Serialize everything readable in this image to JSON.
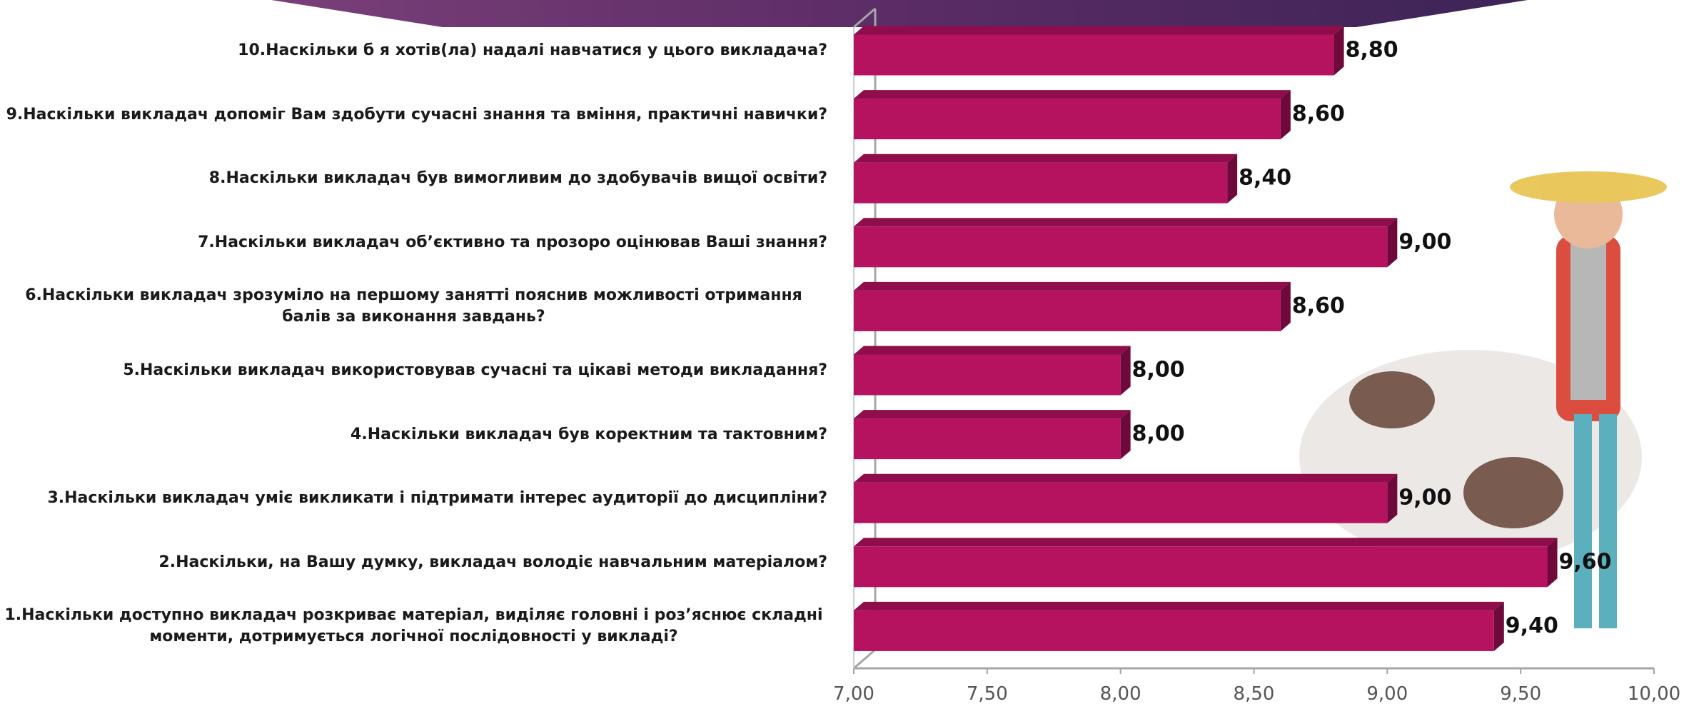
{
  "chart_data": {
    "type": "bar",
    "orientation": "horizontal",
    "categories": [
      "10.Наскільки б я хотів(ла) надалі навчатися у цього викладача?",
      "9.Наскільки викладач допоміг Вам здобути сучасні знання та вміння, практичні навички?",
      "8.Наскільки викладач був вимогливим до здобувачів вищої освіти?",
      "7.Наскільки викладач об’єктивно та прозоро оцінював Ваші знання?",
      "6.Наскільки викладач зрозуміло на першому занятті пояснив можливості отримання балів за виконання завдань?",
      "5.Наскільки викладач використовував сучасні та цікаві методи викладання?",
      "4.Наскільки викладач був коректним та тактовним?",
      "3.Наскільки викладач уміє викликати і підтримати інтерес аудиторії до дисципліни?",
      "2.Наскільки, на Вашу думку, викладач володіє навчальним матеріалом?",
      "1.Наскільки доступно викладач розкриває матеріал, виділяє головні і роз’яснює складні моменти, дотримується логічної послідовності у викладі?"
    ],
    "values": [
      8.8,
      8.6,
      8.4,
      9.0,
      8.6,
      8.0,
      8.0,
      9.0,
      9.6,
      9.4
    ],
    "value_labels": [
      "8,80",
      "8,60",
      "8,40",
      "9,00",
      "8,60",
      "8,00",
      "8,00",
      "9,00",
      "9,60",
      "9,40"
    ],
    "color": "#b5125f",
    "xlim": [
      7,
      10
    ],
    "xticks": [
      {
        "value": 7,
        "label": "7,00"
      },
      {
        "value": 7.5,
        "label": "7,50"
      },
      {
        "value": 8,
        "label": "8,00"
      },
      {
        "value": 8.5,
        "label": "8,50"
      },
      {
        "value": 9,
        "label": "9,00"
      },
      {
        "value": 9.5,
        "label": "9,50"
      },
      {
        "value": 10,
        "label": "10,00"
      }
    ],
    "grid": false
  }
}
